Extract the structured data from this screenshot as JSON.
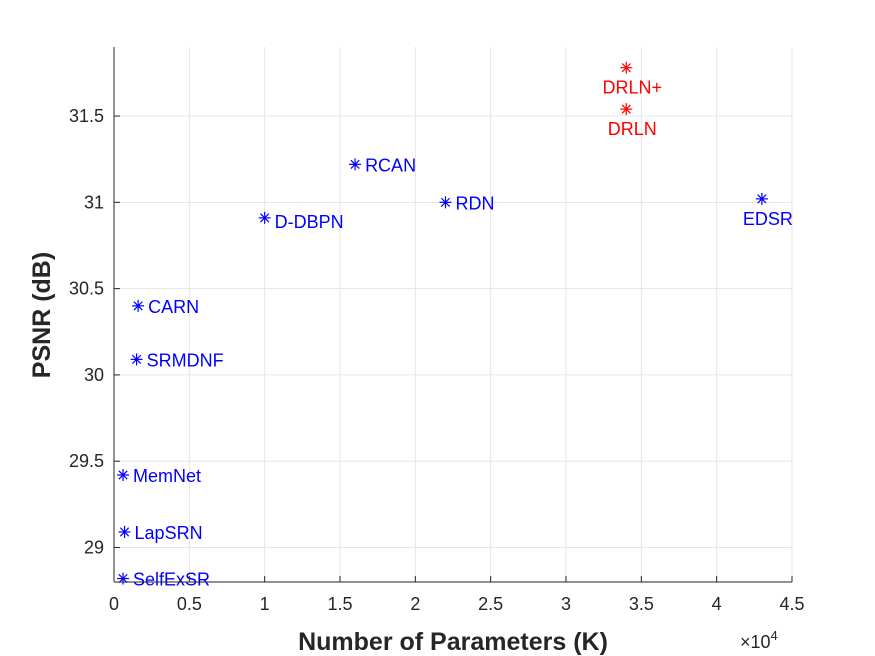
{
  "chart_data": {
    "type": "scatter",
    "title": "",
    "xlabel": "Number of Parameters (K)",
    "ylabel": "PSNR (dB)",
    "x_multiplier_label": "×10",
    "x_multiplier_exponent": "4",
    "xlim": [
      0,
      45000
    ],
    "ylim": [
      28.8,
      31.9
    ],
    "xticks": [
      0,
      5000,
      10000,
      15000,
      20000,
      25000,
      30000,
      35000,
      40000,
      45000
    ],
    "xtick_labels": [
      "0",
      "0.5",
      "1",
      "1.5",
      "2",
      "2.5",
      "3",
      "3.5",
      "4",
      "4.5"
    ],
    "yticks": [
      29,
      29.5,
      30,
      30.5,
      31,
      31.5
    ],
    "ytick_labels": [
      "29",
      "29.5",
      "30",
      "30.5",
      "31",
      "31.5"
    ],
    "grid": true,
    "marker": "asterisk",
    "colors": {
      "baseline": "#0000ff",
      "proposed": "#ff0000",
      "axis": "#262626",
      "grid": "#e6e6e6"
    },
    "points": [
      {
        "label": "SelfExSR",
        "x": 600,
        "y": 28.82,
        "group": "baseline",
        "label_side": "right"
      },
      {
        "label": "LapSRN",
        "x": 700,
        "y": 29.09,
        "group": "baseline",
        "label_side": "right"
      },
      {
        "label": "MemNet",
        "x": 600,
        "y": 29.42,
        "group": "baseline",
        "label_side": "right"
      },
      {
        "label": "SRMDNF",
        "x": 1500,
        "y": 30.09,
        "group": "baseline",
        "label_side": "right"
      },
      {
        "label": "CARN",
        "x": 1600,
        "y": 30.4,
        "group": "baseline",
        "label_side": "right"
      },
      {
        "label": "D-DBPN",
        "x": 10000,
        "y": 30.91,
        "group": "baseline",
        "label_side": "right-below"
      },
      {
        "label": "RCAN",
        "x": 16000,
        "y": 31.22,
        "group": "baseline",
        "label_side": "right"
      },
      {
        "label": "RDN",
        "x": 22000,
        "y": 31.0,
        "group": "baseline",
        "label_side": "right"
      },
      {
        "label": "EDSR",
        "x": 43000,
        "y": 31.02,
        "group": "baseline",
        "label_side": "below"
      },
      {
        "label": "DRLN",
        "x": 34000,
        "y": 31.54,
        "group": "proposed",
        "label_side": "below"
      },
      {
        "label": "DRLN+",
        "x": 34000,
        "y": 31.78,
        "group": "proposed",
        "label_side": "below"
      }
    ]
  }
}
